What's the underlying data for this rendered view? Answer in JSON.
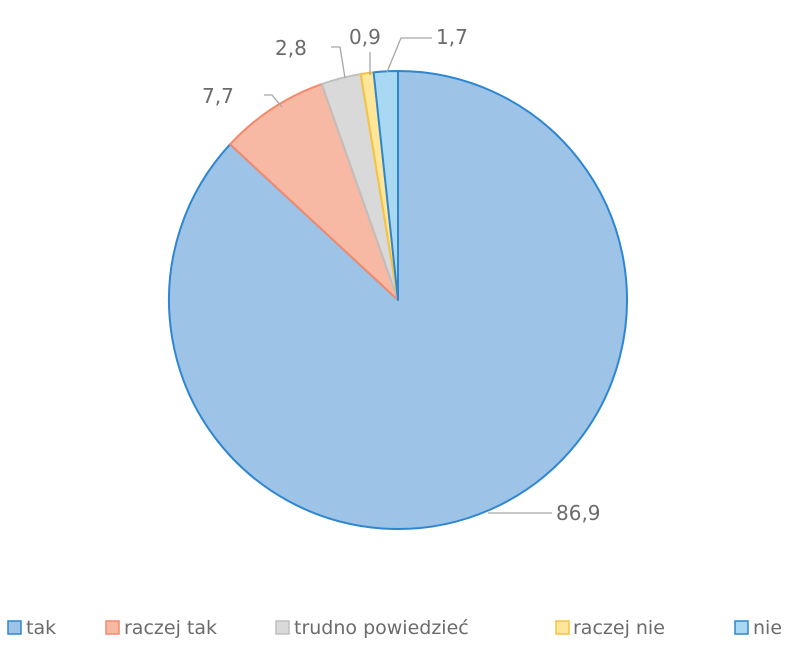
{
  "chart_data": {
    "type": "pie",
    "title": "",
    "categories": [
      "tak",
      "raczej tak",
      "trudno powiedzieć",
      "raczej nie",
      "nie"
    ],
    "values": [
      86.9,
      7.7,
      2.8,
      0.9,
      1.7
    ],
    "value_labels": [
      "86,9",
      "7,7",
      "2,8",
      "0,9",
      "1,7"
    ],
    "colors": [
      "#9dc3e6",
      "#f8b9a4",
      "#d9d9d9",
      "#ffe699",
      "#a9d9f2"
    ],
    "edge_colors": [
      "#2e86d1",
      "#f4896b",
      "#bfbfbf",
      "#f5c242",
      "#2e86d1"
    ],
    "start_angle_deg": 0,
    "direction": "clockwise",
    "legend_position": "bottom"
  }
}
